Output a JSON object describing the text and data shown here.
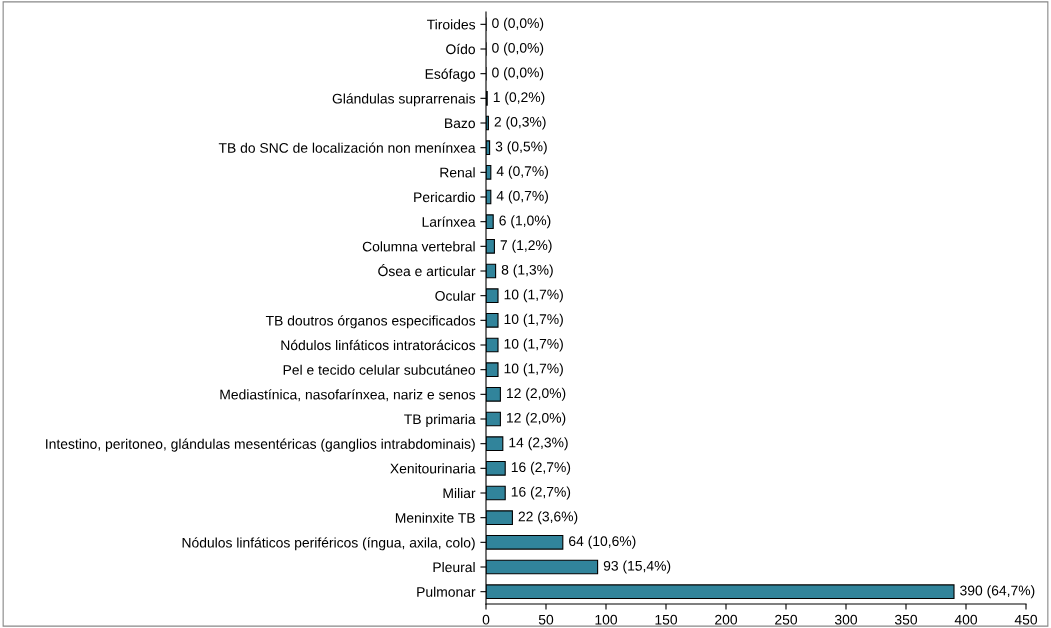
{
  "chart_data": {
    "type": "bar",
    "orientation": "horizontal",
    "categories": [
      "Tiroides",
      "Oído",
      "Esófago",
      "Glándulas suprarrenais",
      "Bazo",
      "TB do SNC de localización non menínxea",
      "Renal",
      "Pericardio",
      "Larínxea",
      "Columna vertebral",
      "Ósea e articular",
      "Ocular",
      "TB doutros órganos especificados",
      "Nódulos linfáticos intratorácicos",
      "Pel e tecido celular subcutáneo",
      "Mediastínica, nasofarínxea, nariz e senos",
      "TB primaria",
      "Intestino, peritoneo, glándulas mesentéricas (ganglios intrabdominais)",
      "Xenitourinaria",
      "Miliar",
      "Meninxite TB",
      "Nódulos linfáticos periféricos (íngua, axila, colo)",
      "Pleural",
      "Pulmonar"
    ],
    "values": [
      0,
      0,
      0,
      1,
      2,
      3,
      4,
      4,
      6,
      7,
      8,
      10,
      10,
      10,
      10,
      12,
      12,
      14,
      16,
      16,
      22,
      64,
      93,
      390
    ],
    "value_labels": [
      "0 (0,0%)",
      "0 (0,0%)",
      "0 (0,0%)",
      "1 (0,2%)",
      "2 (0,3%)",
      "3 (0,5%)",
      "4 (0,7%)",
      "4 (0,7%)",
      "6 (1,0%)",
      "7 (1,2%)",
      "8 (1,3%)",
      "10 (1,7%)",
      "10 (1,7%)",
      "10 (1,7%)",
      "10 (1,7%)",
      "12 (2,0%)",
      "12 (2,0%)",
      "14 (2,3%)",
      "16 (2,7%)",
      "16 (2,7%)",
      "22 (3,6%)",
      "64 (10,6%)",
      "93 (15,4%)",
      "390 (64,7%)"
    ],
    "color": "#31849b",
    "xlim": [
      0,
      450
    ],
    "xticks": [
      0,
      50,
      100,
      150,
      200,
      250,
      300,
      350,
      400,
      450
    ],
    "grid": false
  }
}
